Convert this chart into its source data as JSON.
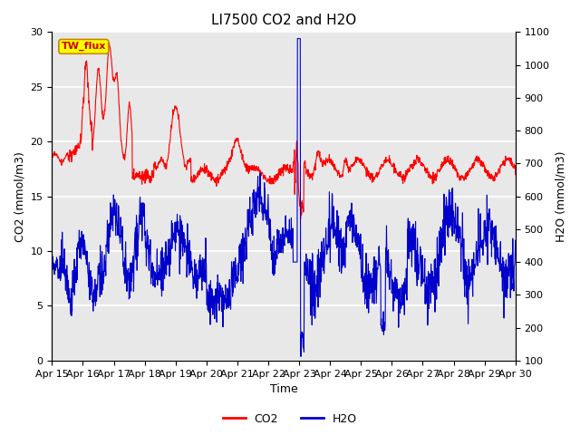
{
  "title": "LI7500 CO2 and H2O",
  "xlabel": "Time",
  "ylabel_left": "CO2 (mmol/m3)",
  "ylabel_right": "H2O (mmol/m3)",
  "ylim_left": [
    0,
    30
  ],
  "ylim_right": [
    100,
    1100
  ],
  "xtick_labels": [
    "Apr 15",
    "Apr 16",
    "Apr 17",
    "Apr 18",
    "Apr 19",
    "Apr 20",
    "Apr 21",
    "Apr 22",
    "Apr 23",
    "Apr 24",
    "Apr 25",
    "Apr 26",
    "Apr 27",
    "Apr 28",
    "Apr 29",
    "Apr 30"
  ],
  "yticks_left": [
    0,
    5,
    10,
    15,
    20,
    25,
    30
  ],
  "yticks_right": [
    100,
    200,
    300,
    400,
    500,
    600,
    700,
    800,
    900,
    1000,
    1100
  ],
  "co2_color": "#ff0000",
  "h2o_color": "#0000cc",
  "plot_bg_color": "#e8e8e8",
  "annotation_text": "TW_flux",
  "annotation_bg": "#ffff00",
  "annotation_border": "#cc8800",
  "grid_color": "#ffffff",
  "legend_co2": "CO2",
  "legend_h2o": "H2O",
  "title_fontsize": 11,
  "label_fontsize": 9,
  "tick_fontsize": 8
}
